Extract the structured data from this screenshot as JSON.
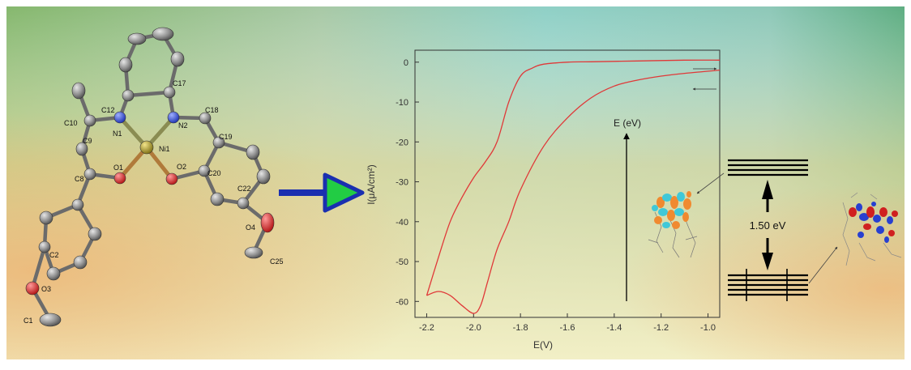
{
  "molecule": {
    "atom_labels": [
      "C12",
      "C17",
      "C18",
      "C10",
      "N1",
      "N2",
      "Ni1",
      "C9",
      "C19",
      "O1",
      "O2",
      "C8",
      "C20",
      "C22",
      "O4",
      "C25",
      "C2",
      "O3",
      "C1"
    ]
  },
  "chart_data": {
    "type": "line",
    "xlabel": "E(V)",
    "ylabel": "I(μA/cm²)",
    "xlim": [
      -2.25,
      -0.95
    ],
    "ylim": [
      -64,
      3
    ],
    "x_ticks": [
      "-2.2",
      "-2.0",
      "-1.8",
      "-1.6",
      "-1.4",
      "-1.2",
      "-1.0"
    ],
    "y_ticks": [
      "0",
      "-10",
      "-20",
      "-30",
      "-40",
      "-50",
      "-60"
    ],
    "series": [
      {
        "color": "#e03838",
        "x": [
          -0.95,
          -1.1,
          -1.3,
          -1.5,
          -1.6,
          -1.7,
          -1.75,
          -1.8,
          -1.85,
          -1.9,
          -1.95,
          -2.0,
          -2.05,
          -2.1,
          -2.15,
          -2.2
        ],
        "y": [
          0.5,
          0.5,
          0.3,
          0.1,
          0,
          -0.5,
          -1.5,
          -3.5,
          -10,
          -20,
          -25,
          -29,
          -34,
          -40,
          -49,
          -58.5
        ]
      },
      {
        "color": "#e03838",
        "x": [
          -2.2,
          -2.15,
          -2.1,
          -2.05,
          -2.0,
          -1.97,
          -1.94,
          -1.9,
          -1.85,
          -1.8,
          -1.7,
          -1.6,
          -1.5,
          -1.4,
          -1.3,
          -1.2,
          -1.1,
          -0.95
        ],
        "y": [
          -58.5,
          -57.5,
          -58.5,
          -61,
          -63,
          -61,
          -55,
          -47,
          -40,
          -32,
          -21,
          -14,
          -9,
          -6,
          -4.5,
          -3.5,
          -2.8,
          -2
        ]
      }
    ]
  },
  "energy": {
    "axis_label": "E (eV)",
    "gap_label": "1.50 eV"
  },
  "colors": {
    "curve": "#e03838",
    "arrow_fill": "#22cc44",
    "arrow_stroke": "#1a2fb0",
    "atom_nickel": "#a89a1e",
    "atom_nitrogen": "#2844d0",
    "atom_oxygen": "#d62020",
    "atom_carbon": "#8a8a8a"
  }
}
